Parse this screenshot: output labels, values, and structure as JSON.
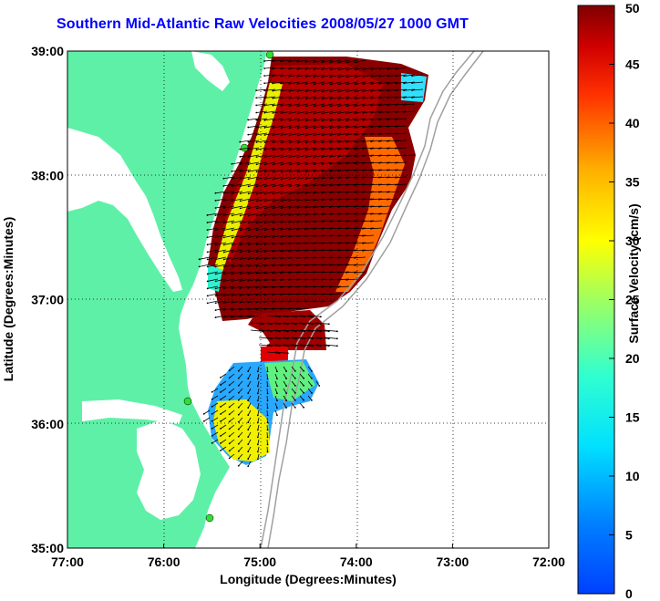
{
  "title": "Southern Mid-Atlantic Raw Velocities 2008/05/27 1000 GMT",
  "chart_data": {
    "type": "heatmap",
    "title": "Southern Mid-Atlantic Raw Velocities 2008/05/27 1000 GMT",
    "xlabel": "Longitude (Degrees:Minutes)",
    "ylabel": "Latitude (Degrees:Minutes)",
    "x_ticks": [
      "77:00",
      "76:00",
      "75:00",
      "74:00",
      "73:00",
      "72:00"
    ],
    "y_ticks": [
      "39:00",
      "38:00",
      "37:00",
      "36:00",
      "35:00"
    ],
    "xlim": [
      "77:00 W",
      "72:00 W"
    ],
    "ylim": [
      "35:00 N",
      "39:00 N"
    ],
    "grid": true,
    "colorbar": {
      "label": "Surface Velocity (cm/s)",
      "range": [
        0,
        50
      ],
      "ticks": [
        "50",
        "45",
        "40",
        "35",
        "30",
        "25",
        "20",
        "15",
        "10",
        "5",
        "0"
      ],
      "colormap": "jet"
    },
    "colors": {
      "land": "#5ff0a8",
      "title": "#0000ff",
      "coastline": "#000000",
      "bathymetry": "#a0a0a0",
      "vectors": "#000000"
    }
  }
}
